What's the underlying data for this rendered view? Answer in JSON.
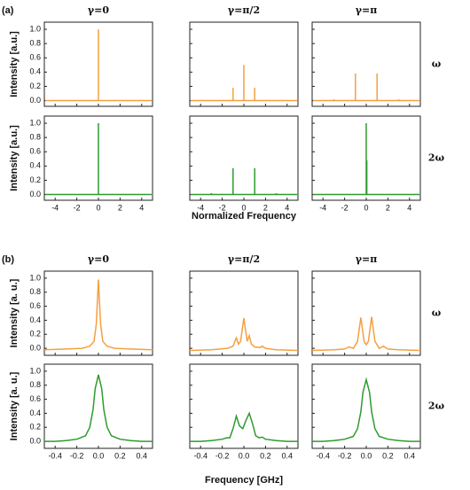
{
  "panels": [
    {
      "label": "(a)",
      "column_titles": [
        "γ=0",
        "γ=π/2",
        "γ=π"
      ],
      "row_labels": [
        "ω",
        "2ω"
      ],
      "ylabel": "Intensity [a.u.]",
      "xlabel": "Normalized Frequency",
      "xlim": [
        -5,
        5
      ],
      "xticks": [
        -4,
        -2,
        {
          "value": 0,
          "label": "0"
        },
        2,
        4
      ],
      "ylim": [
        -0.08,
        1.1
      ],
      "yticks": [
        {
          "value": 0,
          "label": "0.0"
        },
        0.2,
        0.4,
        0.6,
        0.8,
        {
          "value": 1,
          "label": "1.0"
        }
      ]
    },
    {
      "label": "(b)",
      "column_titles": [
        "γ=0",
        "γ=π/2",
        "γ=π"
      ],
      "row_labels": [
        "ω",
        "2ω"
      ],
      "ylabel": "Intensity [a. u.]",
      "xlabel": "Frequency [GHz]",
      "xlim": [
        -0.5,
        0.5
      ],
      "xticks": [
        -0.4,
        -0.2,
        {
          "value": 0,
          "label": "0.0"
        },
        0.2,
        0.4
      ],
      "ylim": [
        -0.1,
        1.1
      ],
      "yticks": [
        {
          "value": 0,
          "label": "0.0"
        },
        0.2,
        0.4,
        0.6,
        0.8,
        {
          "value": 1,
          "label": "1.0"
        }
      ]
    }
  ],
  "chart_data": [
    {
      "type": "stem",
      "color": "#f5a040",
      "x": [
        0
      ],
      "values": [
        1.0
      ]
    },
    {
      "type": "stem",
      "color": "#f5a040",
      "x": [
        -1,
        0,
        1
      ],
      "values": [
        0.18,
        0.5,
        0.18
      ]
    },
    {
      "type": "stem",
      "color": "#f5a040",
      "x": [
        -3,
        -1,
        1,
        3
      ],
      "values": [
        0.02,
        0.38,
        0.38,
        0.02
      ]
    },
    {
      "type": "stem",
      "color": "#2e9a2e",
      "x": [
        0
      ],
      "values": [
        1.0
      ]
    },
    {
      "type": "stem",
      "color": "#2e9a2e",
      "x": [
        -3,
        -1,
        1,
        3
      ],
      "values": [
        0.02,
        0.37,
        0.37,
        0.02
      ]
    },
    {
      "type": "stem",
      "color": "#2e9a2e",
      "x": [
        0,
        0.05
      ],
      "values": [
        1.0,
        0.48
      ]
    },
    {
      "type": "line",
      "color": "#f5a040",
      "x": [
        -0.5,
        -0.3,
        -0.15,
        -0.08,
        -0.04,
        -0.02,
        0,
        0.02,
        0.04,
        0.08,
        0.15,
        0.3,
        0.5
      ],
      "values": [
        -0.02,
        -0.01,
        0.0,
        0.03,
        0.1,
        0.35,
        0.98,
        0.35,
        0.1,
        0.03,
        0.0,
        -0.01,
        -0.02
      ]
    },
    {
      "type": "line",
      "color": "#f5a040",
      "x": [
        -0.5,
        -0.3,
        -0.15,
        -0.1,
        -0.07,
        -0.05,
        -0.03,
        0,
        0.03,
        0.05,
        0.07,
        0.1,
        0.15,
        0.17,
        0.2,
        0.3,
        0.5
      ],
      "values": [
        -0.03,
        -0.02,
        0.0,
        0.03,
        0.15,
        0.06,
        0.1,
        0.43,
        0.1,
        0.18,
        0.06,
        0.02,
        0.01,
        0.03,
        0.0,
        -0.02,
        -0.03
      ]
    },
    {
      "type": "line",
      "color": "#f5a040",
      "x": [
        -0.5,
        -0.3,
        -0.2,
        -0.16,
        -0.12,
        -0.08,
        -0.05,
        -0.02,
        0,
        0.02,
        0.05,
        0.08,
        0.12,
        0.16,
        0.2,
        0.3,
        0.5
      ],
      "values": [
        -0.03,
        -0.02,
        -0.01,
        0.02,
        0.0,
        0.1,
        0.44,
        0.1,
        0.05,
        0.1,
        0.45,
        0.1,
        0.0,
        0.03,
        -0.01,
        -0.02,
        -0.03
      ]
    },
    {
      "type": "line",
      "color": "#2e9a2e",
      "x": [
        -0.5,
        -0.4,
        -0.3,
        -0.2,
        -0.12,
        -0.08,
        -0.05,
        -0.03,
        0,
        0.03,
        0.05,
        0.08,
        0.12,
        0.2,
        0.3,
        0.4,
        0.5
      ],
      "values": [
        0,
        0,
        0.01,
        0.03,
        0.08,
        0.2,
        0.45,
        0.75,
        0.95,
        0.75,
        0.45,
        0.2,
        0.08,
        0.03,
        0.01,
        0,
        0
      ]
    },
    {
      "type": "line",
      "color": "#2e9a2e",
      "x": [
        -0.5,
        -0.4,
        -0.3,
        -0.2,
        -0.16,
        -0.13,
        -0.1,
        -0.07,
        -0.04,
        -0.01,
        0.02,
        0.05,
        0.08,
        0.11,
        0.14,
        0.17,
        0.2,
        0.3,
        0.4,
        0.5
      ],
      "values": [
        0,
        0,
        0.01,
        0.03,
        0.05,
        0.05,
        0.18,
        0.36,
        0.22,
        0.18,
        0.3,
        0.4,
        0.25,
        0.08,
        0.05,
        0.06,
        0.03,
        0.01,
        0,
        0
      ]
    },
    {
      "type": "line",
      "color": "#2e9a2e",
      "x": [
        -0.5,
        -0.4,
        -0.3,
        -0.2,
        -0.12,
        -0.08,
        -0.05,
        -0.03,
        0,
        0.03,
        0.05,
        0.08,
        0.12,
        0.2,
        0.3,
        0.4,
        0.5
      ],
      "values": [
        0,
        0,
        0.01,
        0.03,
        0.07,
        0.18,
        0.42,
        0.7,
        0.88,
        0.7,
        0.42,
        0.18,
        0.07,
        0.03,
        0.01,
        0,
        0
      ]
    }
  ]
}
